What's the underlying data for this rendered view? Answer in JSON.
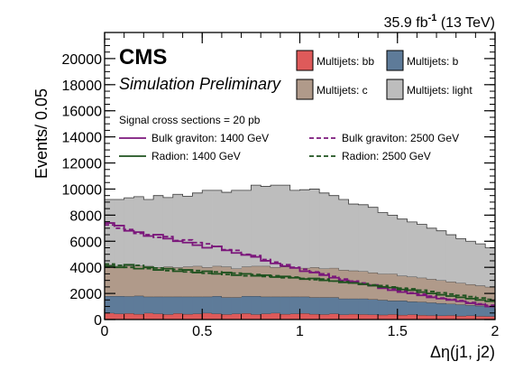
{
  "header": {
    "lumi_value": "35.9 fb",
    "lumi_exponent": "-1",
    "energy": " (13 TeV)",
    "experiment": "CMS",
    "status": "Simulation Preliminary"
  },
  "legend": {
    "signal_header": "Signal cross sections = 20 pb"
  },
  "colors": {
    "bb": "#de5a5a",
    "b": "#5e7b99",
    "c": "#b09a8a",
    "light": "#bdbdbd",
    "graviton": "#7b177b",
    "radion": "#1f521f",
    "axis": "#000000",
    "background": "#ffffff"
  },
  "chart_data": {
    "type": "area",
    "stacked": true,
    "step": true,
    "xlabel": "Δη(j1, j2)",
    "ylabel": "Events/ 0.05",
    "xlim": [
      0,
      2
    ],
    "ylim": [
      0,
      22000
    ],
    "x_ticks": [
      0,
      0.5,
      1,
      1.5,
      2
    ],
    "x_tick_labels": [
      "0",
      "0.5",
      "1",
      "1.5",
      "2"
    ],
    "y_ticks": [
      0,
      2000,
      4000,
      6000,
      8000,
      10000,
      12000,
      14000,
      16000,
      18000,
      20000
    ],
    "y_tick_labels": [
      "0",
      "2000",
      "4000",
      "6000",
      "8000",
      "10000",
      "12000",
      "14000",
      "16000",
      "18000",
      "20000"
    ],
    "grid": false,
    "legend_position": "top",
    "bin_edges": [
      0,
      0.05,
      0.1,
      0.15,
      0.2,
      0.25,
      0.3,
      0.35,
      0.4,
      0.45,
      0.5,
      0.55,
      0.6,
      0.65,
      0.7,
      0.75,
      0.8,
      0.85,
      0.9,
      0.95,
      1.0,
      1.05,
      1.1,
      1.15,
      1.2,
      1.25,
      1.3,
      1.35,
      1.4,
      1.45,
      1.5,
      1.55,
      1.6,
      1.65,
      1.7,
      1.75,
      1.8,
      1.85,
      1.9,
      1.95,
      2.0
    ],
    "stack_order": [
      "Multijets: bb",
      "Multijets: b",
      "Multijets: c",
      "Multijets: light"
    ],
    "series": [
      {
        "name": "Multijets: bb",
        "kind": "stack",
        "color_key": "bb",
        "values": [
          500,
          450,
          480,
          420,
          500,
          450,
          400,
          480,
          420,
          450,
          500,
          450,
          400,
          450,
          480,
          400,
          450,
          500,
          420,
          450,
          480,
          420,
          400,
          450,
          380,
          420,
          400,
          380,
          360,
          400,
          350,
          380,
          340,
          320,
          300,
          320,
          280,
          300,
          260,
          250
        ]
      },
      {
        "name": "Multijets: b",
        "kind": "stack",
        "color_key": "b",
        "values": [
          1300,
          1350,
          1300,
          1400,
          1250,
          1300,
          1350,
          1270,
          1330,
          1300,
          1250,
          1350,
          1300,
          1250,
          1320,
          1400,
          1300,
          1250,
          1330,
          1300,
          1270,
          1280,
          1300,
          1250,
          1220,
          1180,
          1200,
          1170,
          1140,
          1050,
          1100,
          1000,
          1010,
          980,
          950,
          880,
          870,
          800,
          790,
          750
        ]
      },
      {
        "name": "Multijets: c",
        "kind": "stack",
        "color_key": "c",
        "values": [
          2400,
          2300,
          2350,
          2300,
          2350,
          2250,
          2300,
          2250,
          2300,
          2350,
          2250,
          2300,
          2350,
          2200,
          2250,
          2300,
          2350,
          2250,
          2300,
          2250,
          2200,
          2300,
          2200,
          2250,
          2200,
          2150,
          2100,
          2050,
          2000,
          2050,
          1900,
          1900,
          1850,
          1800,
          1750,
          1700,
          1650,
          1600,
          1550,
          1500
        ]
      },
      {
        "name": "Multijets: light",
        "kind": "stack",
        "color_key": "light",
        "values": [
          5000,
          5100,
          5200,
          5300,
          5100,
          5500,
          5300,
          5600,
          5400,
          5600,
          5900,
          5800,
          5700,
          6000,
          5850,
          6200,
          6100,
          6300,
          6250,
          5900,
          6000,
          6000,
          5800,
          5550,
          5400,
          5100,
          5100,
          5000,
          4700,
          4500,
          4350,
          4200,
          4100,
          3900,
          3800,
          3600,
          3400,
          3300,
          3200,
          3000
        ]
      },
      {
        "name": "Bulk graviton: 1400 GeV",
        "kind": "line",
        "style": "solid",
        "color_key": "graviton",
        "values": [
          7400,
          7200,
          6800,
          6700,
          6400,
          6500,
          6200,
          6000,
          5900,
          5700,
          5500,
          5600,
          5300,
          5100,
          4950,
          4800,
          4500,
          4300,
          4100,
          3950,
          3700,
          3600,
          3400,
          3200,
          3000,
          2900,
          2700,
          2600,
          2400,
          2250,
          2100,
          2000,
          1850,
          1700,
          1600,
          1500,
          1400,
          1250,
          1150,
          1000
        ]
      },
      {
        "name": "Bulk graviton: 2500 GeV",
        "kind": "line",
        "style": "dashed",
        "color_key": "graviton",
        "values": [
          7250,
          7000,
          6900,
          6600,
          6500,
          6300,
          6350,
          6050,
          6100,
          5900,
          5800,
          5600,
          5350,
          5300,
          5000,
          4900,
          4600,
          4400,
          4200,
          4000,
          3850,
          3650,
          3500,
          3300,
          3100,
          2950,
          2800,
          2650,
          2500,
          2350,
          2200,
          2050,
          1950,
          1800,
          1650,
          1550,
          1450,
          1300,
          1200,
          1100
        ]
      },
      {
        "name": "Radion: 1400 GeV",
        "kind": "line",
        "style": "solid",
        "color_key": "radion",
        "values": [
          4100,
          4000,
          4200,
          3900,
          4000,
          3800,
          3900,
          3700,
          3800,
          3600,
          3700,
          3500,
          3600,
          3400,
          3500,
          3350,
          3400,
          3250,
          3300,
          3200,
          3100,
          3150,
          3000,
          2950,
          2850,
          2800,
          2700,
          2600,
          2500,
          2450,
          2300,
          2250,
          2100,
          2000,
          1900,
          1800,
          1700,
          1600,
          1500,
          1400
        ]
      },
      {
        "name": "Radion: 2500 GeV",
        "kind": "line",
        "style": "dashed",
        "color_key": "radion",
        "values": [
          4250,
          4150,
          4000,
          4150,
          3900,
          3950,
          3750,
          3850,
          3650,
          3750,
          3550,
          3650,
          3450,
          3550,
          3350,
          3450,
          3300,
          3350,
          3200,
          3250,
          3150,
          3050,
          3100,
          2950,
          2900,
          2800,
          2750,
          2650,
          2600,
          2500,
          2400,
          2350,
          2250,
          2150,
          2050,
          1950,
          1850,
          1750,
          1650,
          1550
        ]
      }
    ]
  }
}
